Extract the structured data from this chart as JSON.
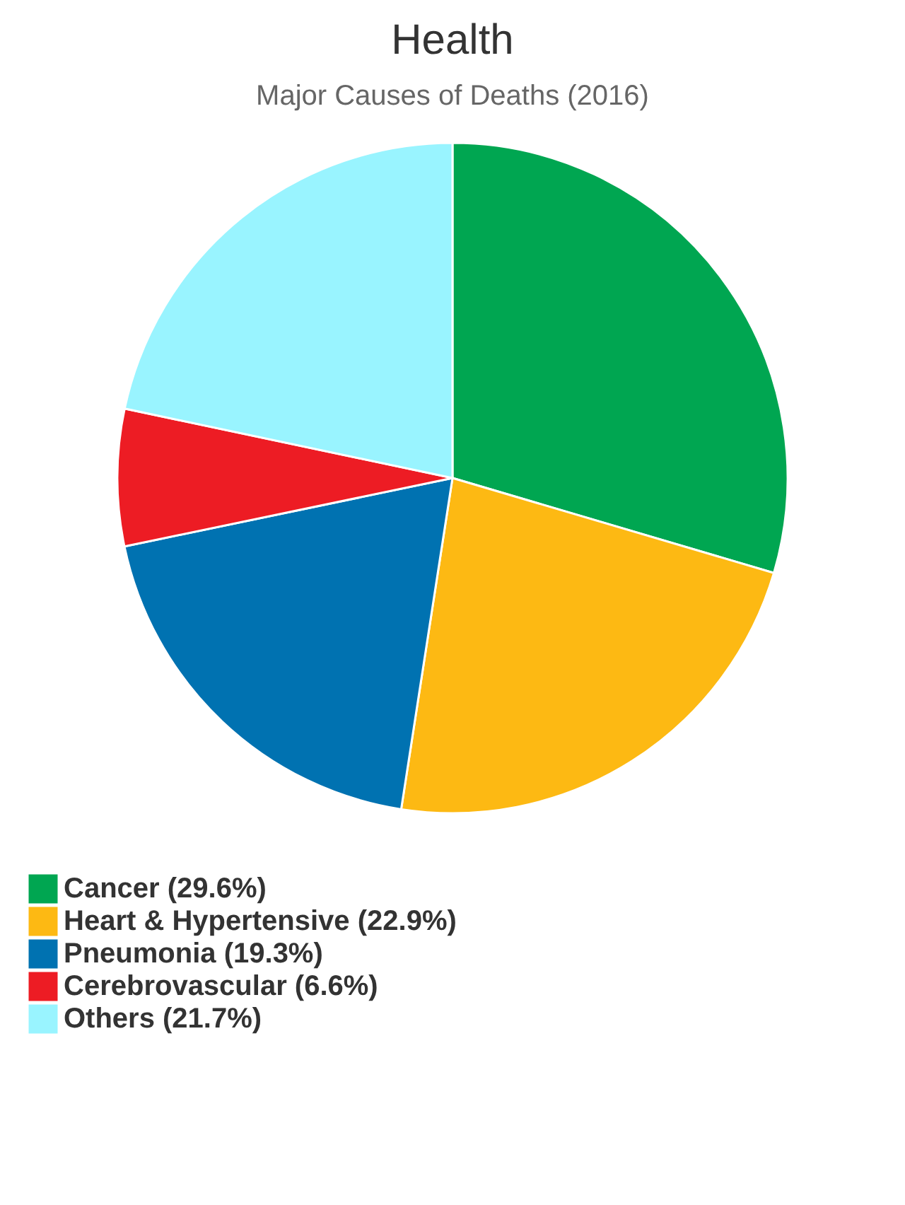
{
  "chart_data": {
    "type": "pie",
    "title": "Health",
    "subtitle": "Major Causes of Deaths (2016)",
    "categories": [
      "Cancer (29.6%)",
      "Heart & Hypertensive (22.9%)",
      "Pneumonia (19.3%)",
      "Cerebrovascular (6.6%)",
      "Others (21.7%)"
    ],
    "values": [
      29.6,
      22.9,
      19.3,
      6.6,
      21.7
    ],
    "colors": [
      "#00a651",
      "#fdb913",
      "#0072b1",
      "#ed1c24",
      "#99f4ff"
    ],
    "legend": "bottom"
  }
}
